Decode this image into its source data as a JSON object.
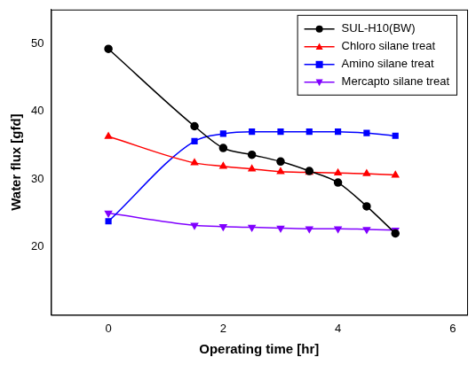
{
  "chart_data": {
    "type": "line",
    "x_label": "Operating time [hr]",
    "y_label": "Water flux [gfd]",
    "x": [
      0,
      1.5,
      2,
      2.5,
      3,
      3.5,
      4,
      4.5,
      5
    ],
    "series": [
      {
        "name": "SUL-H10(BW)",
        "color": "#000000",
        "marker": "circle",
        "values": [
          49.2,
          37.8,
          34.6,
          33.6,
          32.6,
          31.2,
          29.5,
          26.0,
          22.0
        ]
      },
      {
        "name": "Chloro silane treat",
        "color": "#ff0000",
        "marker": "triangle",
        "values": [
          36.3,
          32.4,
          31.9,
          31.5,
          31.1,
          31.0,
          30.9,
          30.8,
          30.6
        ]
      },
      {
        "name": "Amino silane treat",
        "color": "#0000ff",
        "marker": "square",
        "values": [
          23.8,
          35.6,
          36.7,
          37.0,
          37.0,
          37.0,
          37.0,
          36.8,
          36.4
        ]
      },
      {
        "name": "Mercapto silane treat",
        "color": "#8000ff",
        "marker": "triangle_down",
        "values": [
          25.0,
          23.2,
          23.0,
          22.9,
          22.8,
          22.7,
          22.7,
          22.6,
          22.5
        ]
      }
    ],
    "xlim": [
      -1,
      6.25
    ],
    "xticks": [
      0,
      2,
      4,
      6
    ],
    "ylim": [
      10,
      55
    ],
    "yticks": [
      20,
      30,
      40,
      50
    ],
    "grid": false,
    "legend": "upper right"
  }
}
